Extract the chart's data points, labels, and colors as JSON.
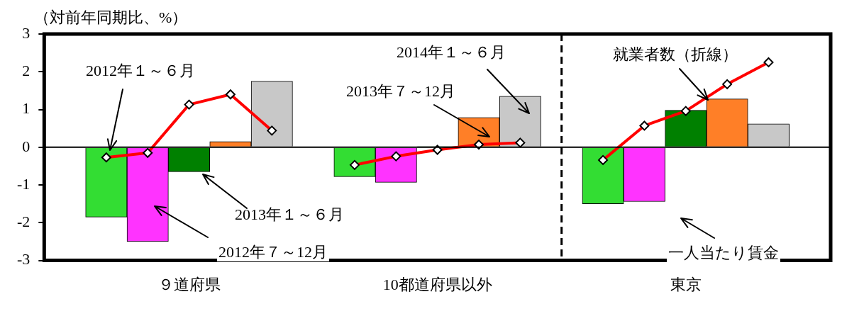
{
  "chart_data": {
    "type": "bar",
    "ylabel": "（対前年同期比、%）",
    "categories": [
      null,
      null,
      null,
      "９道府県",
      null,
      null,
      null,
      null,
      null,
      "10都道府県以外",
      null,
      null,
      null,
      null,
      null,
      "東京",
      null,
      null,
      null
    ],
    "series": [
      {
        "name": "2012年１～６月",
        "color": "#33dd33",
        "values": [
          null,
          -1.85,
          null,
          null,
          null,
          null,
          null,
          -0.78,
          null,
          null,
          null,
          null,
          null,
          -1.5,
          null,
          null,
          null,
          null,
          null
        ]
      },
      {
        "name": "2012年７～12月",
        "color": "#ff33ff",
        "values": [
          null,
          null,
          -2.5,
          null,
          null,
          null,
          null,
          null,
          -0.93,
          null,
          null,
          null,
          null,
          null,
          -1.44,
          null,
          null,
          null,
          null
        ]
      },
      {
        "name": "2013年１～６月",
        "color": "#008000",
        "values": [
          null,
          null,
          null,
          -0.65,
          null,
          null,
          null,
          null,
          null,
          0.02,
          null,
          null,
          null,
          null,
          null,
          0.98,
          null,
          null,
          null
        ]
      },
      {
        "name": "2013年７～12月",
        "color": "#ff7f27",
        "values": [
          null,
          null,
          null,
          null,
          0.15,
          null,
          null,
          null,
          null,
          null,
          0.79,
          null,
          null,
          null,
          null,
          null,
          1.28,
          null,
          null
        ]
      },
      {
        "name": "2014年１～６月",
        "color": "#c8c8c8",
        "values": [
          null,
          null,
          null,
          null,
          null,
          1.75,
          null,
          null,
          null,
          null,
          null,
          1.35,
          null,
          null,
          null,
          null,
          null,
          0.62,
          null
        ]
      },
      {
        "name": "就業者数（折線）",
        "type": "line",
        "color": "#ff0000",
        "marker": "diamond",
        "values": [
          null,
          -0.27,
          -0.15,
          1.13,
          1.4,
          0.44,
          null,
          -0.47,
          -0.24,
          -0.07,
          0.07,
          0.12,
          null,
          -0.34,
          0.57,
          0.96,
          1.67,
          2.25,
          null
        ]
      }
    ],
    "ylim": [
      -3,
      3
    ],
    "yticks": [
      -3,
      -2,
      -1,
      0,
      1,
      2,
      3
    ],
    "grid": false,
    "legend": false,
    "annotations": [
      "一人当たり賃金"
    ]
  }
}
